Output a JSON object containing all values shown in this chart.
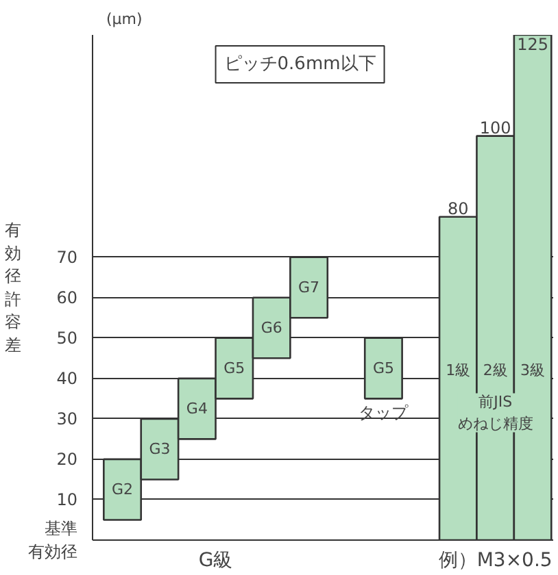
{
  "chart_data": {
    "type": "bar",
    "title": "ピッチ0.6mm以下",
    "ylabel": "有効径許容差",
    "categories": [
      "G2",
      "G3",
      "G4",
      "G5",
      "G6",
      "G7",
      null,
      "G5",
      null,
      "1級",
      "2級",
      "3級"
    ],
    "values": [
      15,
      15,
      15,
      15,
      15,
      15,
      null,
      15,
      null,
      80,
      100,
      125
    ],
    "base": [
      5,
      15,
      25,
      35,
      45,
      55,
      null,
      35,
      null,
      0,
      0,
      0
    ],
    "value_labels": [
      null,
      null,
      null,
      null,
      null,
      null,
      null,
      null,
      null,
      "80",
      "100",
      "125"
    ],
    "color": "#b5dfc0",
    "ylim": [
      0,
      125
    ],
    "yticks": [
      {
        "value": 0,
        "label": "基準有効径"
      },
      10,
      20,
      30,
      40,
      50,
      60,
      70
    ],
    "grid": "y",
    "annotations": [
      "(μm)",
      "G級",
      "タップ",
      "前JIS めねじ精度",
      "例）M3×0.5"
    ]
  }
}
